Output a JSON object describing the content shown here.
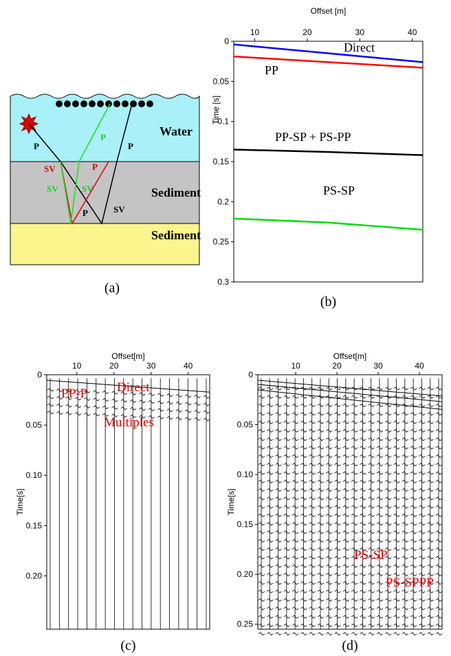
{
  "panels": [
    {
      "caption": "(a)",
      "labels": {
        "water": "Water",
        "sediment_1": "Sediment",
        "sediment_2": "Sediment",
        "rays": [
          "P",
          "P",
          "P",
          "SV",
          "P",
          "SV",
          "SV",
          "P",
          "SV"
        ]
      }
    },
    {
      "caption": "(b)",
      "xlabel": "Offset [m]",
      "ylabel": "Time [s]",
      "xlim": [
        6,
        42
      ],
      "ylim": [
        0,
        0.3
      ],
      "xticks": [
        10,
        20,
        30,
        40
      ],
      "yticks": [
        0,
        0.05,
        0.1,
        0.15,
        0.2,
        0.25,
        0.3
      ],
      "series": [
        {
          "name": "Direct",
          "color": "#0000ff",
          "x": [
            6,
            24,
            42
          ],
          "values": [
            0.004,
            0.015,
            0.026
          ]
        },
        {
          "name": "PP",
          "color": "#ff0000",
          "x": [
            6,
            24,
            42
          ],
          "values": [
            0.019,
            0.026,
            0.033
          ]
        },
        {
          "name": "PP-SP + PS-PP",
          "color": "#000000",
          "x": [
            6,
            24,
            42
          ],
          "values": [
            0.135,
            0.138,
            0.142
          ]
        },
        {
          "name": "PS-SP",
          "color": "#00dd00",
          "x": [
            6,
            24,
            42
          ],
          "values": [
            0.221,
            0.226,
            0.235
          ]
        }
      ]
    },
    {
      "caption": "(c)",
      "xlabel": "Offset[m]",
      "ylabel": "Time[s]",
      "xlim": [
        1.9,
        45.8
      ],
      "ylim": [
        0,
        0.253
      ],
      "xticks": [
        10,
        20,
        30,
        40
      ],
      "yticks": [
        0,
        0.05,
        {
          "value": 0.1,
          "label": "0.10"
        },
        0.15,
        {
          "value": 0.2,
          "label": "0.20"
        }
      ],
      "annotations": [
        "PP-P",
        "Direct",
        "Multiples"
      ]
    },
    {
      "caption": "(d)",
      "xlabel": "Offset[m]",
      "ylabel": "Time[s]",
      "xlim": [
        0.8,
        45.5
      ],
      "ylim": [
        0,
        0.255
      ],
      "xticks": [
        10,
        20,
        30,
        40
      ],
      "yticks": [
        0,
        0.05,
        {
          "value": 0.1,
          "label": "0.10"
        },
        0.15,
        {
          "value": 0.2,
          "label": "0.20"
        },
        0.25
      ],
      "annotations": [
        "PS-SP",
        "PS-SPPP"
      ]
    }
  ]
}
